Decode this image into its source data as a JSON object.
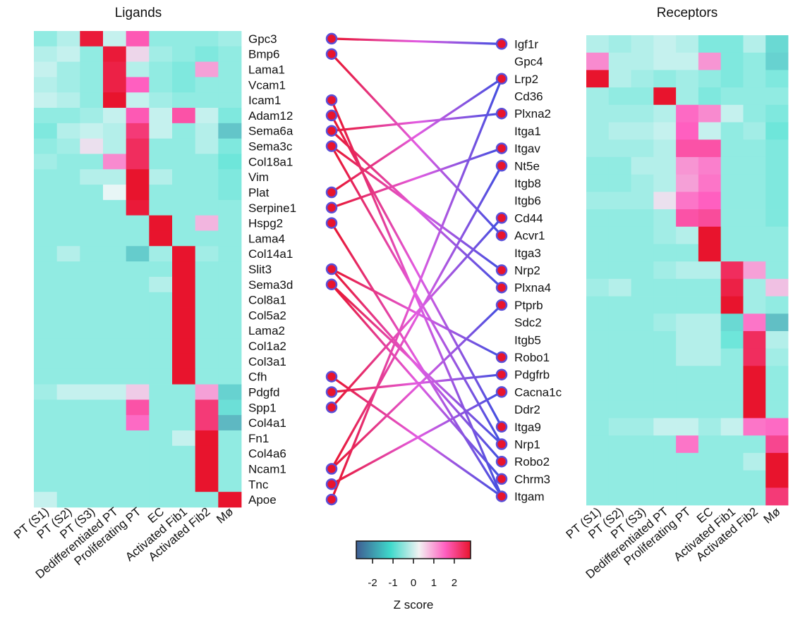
{
  "chart_data": {
    "type": "heatmap",
    "ligands_title": "Ligands",
    "receptors_title": "Receptors",
    "cell_types": [
      "PT (S1)",
      "PT (S2)",
      "PT (S3)",
      "Dedifferentiated PT",
      "Proliferating PT",
      "EC",
      "Activated Fib1",
      "Activated Fib2",
      "Mø"
    ],
    "ligands": [
      "Gpc3",
      "Bmp6",
      "Lama1",
      "Vcam1",
      "Icam1",
      "Adam12",
      "Sema6a",
      "Sema3c",
      "Col18a1",
      "Vim",
      "Plat",
      "Serpine1",
      "Hspg2",
      "Lama4",
      "Col14a1",
      "Slit3",
      "Sema3d",
      "Col8a1",
      "Col5a2",
      "Lama2",
      "Col1a2",
      "Col3a1",
      "Cfh",
      "Pdgfd",
      "Spp1",
      "Col4a1",
      "Fn1",
      "Col4a6",
      "Ncam1",
      "Tnc",
      "Apoe"
    ],
    "receptors": [
      "Igf1r",
      "Gpc4",
      "Lrp2",
      "Cd36",
      "Plxna2",
      "Itga1",
      "Itgav",
      "Nt5e",
      "Itgb8",
      "Itgb6",
      "Cd44",
      "Acvr1",
      "Itga3",
      "Nrp2",
      "Plxna4",
      "Ptprb",
      "Sdc2",
      "Itgb5",
      "Robo1",
      "Pdgfrb",
      "Cacna1c",
      "Ddr2",
      "Itga9",
      "Nrp1",
      "Robo2",
      "Chrm3",
      "Itgam"
    ],
    "ligand_z": [
      [
        -0.5,
        -0.3,
        2.5,
        -0.2,
        1.5,
        -0.5,
        -0.5,
        -0.5,
        -0.4
      ],
      [
        -0.3,
        -0.2,
        -0.5,
        2.5,
        0.3,
        -0.4,
        -0.5,
        -0.6,
        -0.5
      ],
      [
        -0.2,
        -0.4,
        -0.5,
        2.4,
        -0.3,
        -0.5,
        -0.6,
        0.8,
        -0.5
      ],
      [
        -0.3,
        -0.4,
        -0.5,
        2.4,
        1.4,
        -0.5,
        -0.6,
        -0.5,
        -0.5
      ],
      [
        -0.2,
        -0.3,
        -0.5,
        2.6,
        -0.2,
        -0.4,
        -0.5,
        -0.5,
        -0.5
      ],
      [
        -0.5,
        -0.5,
        -0.4,
        -0.2,
        1.5,
        -0.2,
        1.6,
        -0.2,
        -0.6
      ],
      [
        -0.6,
        -0.3,
        -0.2,
        -0.3,
        2.0,
        -0.2,
        -0.5,
        -0.3,
        -1.2
      ],
      [
        -0.5,
        -0.4,
        0.2,
        -0.3,
        2.2,
        -0.5,
        -0.5,
        -0.3,
        -0.6
      ],
      [
        -0.4,
        -0.5,
        -0.5,
        1.0,
        2.2,
        -0.5,
        -0.5,
        -0.5,
        -0.7
      ],
      [
        -0.5,
        -0.5,
        -0.3,
        -0.3,
        2.6,
        -0.3,
        -0.5,
        -0.5,
        -0.6
      ],
      [
        -0.5,
        -0.5,
        -0.5,
        0.0,
        2.6,
        -0.5,
        -0.5,
        -0.5,
        -0.6
      ],
      [
        -0.5,
        -0.5,
        -0.5,
        -0.5,
        2.5,
        -0.5,
        -0.5,
        -0.5,
        -0.5
      ],
      [
        -0.5,
        -0.5,
        -0.5,
        -0.5,
        -0.5,
        2.6,
        -0.5,
        0.6,
        -0.5
      ],
      [
        -0.5,
        -0.5,
        -0.5,
        -0.5,
        -0.5,
        2.6,
        -0.5,
        -0.5,
        -0.5
      ],
      [
        -0.5,
        -0.3,
        -0.5,
        -0.5,
        -1.1,
        -0.4,
        2.6,
        -0.4,
        -0.5
      ],
      [
        -0.5,
        -0.5,
        -0.5,
        -0.5,
        -0.5,
        -0.5,
        2.6,
        -0.5,
        -0.5
      ],
      [
        -0.5,
        -0.5,
        -0.5,
        -0.5,
        -0.5,
        -0.3,
        2.6,
        -0.5,
        -0.5
      ],
      [
        -0.5,
        -0.5,
        -0.5,
        -0.5,
        -0.5,
        -0.5,
        2.6,
        -0.5,
        -0.5
      ],
      [
        -0.5,
        -0.5,
        -0.5,
        -0.5,
        -0.5,
        -0.5,
        2.6,
        -0.5,
        -0.5
      ],
      [
        -0.5,
        -0.5,
        -0.5,
        -0.5,
        -0.5,
        -0.5,
        2.6,
        -0.5,
        -0.5
      ],
      [
        -0.5,
        -0.5,
        -0.5,
        -0.5,
        -0.5,
        -0.5,
        2.6,
        -0.5,
        -0.5
      ],
      [
        -0.5,
        -0.5,
        -0.5,
        -0.5,
        -0.5,
        -0.5,
        2.6,
        -0.5,
        -0.5
      ],
      [
        -0.5,
        -0.5,
        -0.5,
        -0.5,
        -0.5,
        -0.5,
        2.6,
        -0.5,
        -0.5
      ],
      [
        -0.4,
        -0.2,
        -0.2,
        -0.2,
        0.4,
        -0.5,
        -0.5,
        0.8,
        -1.0
      ],
      [
        -0.5,
        -0.5,
        -0.5,
        -0.5,
        1.6,
        -0.5,
        -0.5,
        2.0,
        -0.8
      ],
      [
        -0.5,
        -0.5,
        -0.5,
        -0.5,
        1.3,
        -0.5,
        -0.5,
        2.0,
        -1.4
      ],
      [
        -0.5,
        -0.5,
        -0.5,
        -0.5,
        -0.5,
        -0.5,
        -0.2,
        2.6,
        -0.5
      ],
      [
        -0.5,
        -0.5,
        -0.5,
        -0.5,
        -0.5,
        -0.5,
        -0.5,
        2.6,
        -0.5
      ],
      [
        -0.5,
        -0.5,
        -0.5,
        -0.5,
        -0.5,
        -0.5,
        -0.5,
        2.6,
        -0.5
      ],
      [
        -0.5,
        -0.5,
        -0.5,
        -0.5,
        -0.5,
        -0.5,
        -0.5,
        2.6,
        -0.5
      ],
      [
        -0.2,
        -0.5,
        -0.5,
        -0.5,
        -0.5,
        -0.5,
        -0.5,
        -0.5,
        2.6
      ]
    ],
    "receptor_z": [
      [
        -0.3,
        -0.4,
        -0.3,
        -0.2,
        -0.3,
        -0.6,
        -0.6,
        -0.3,
        -0.9
      ],
      [
        1.0,
        -0.3,
        -0.3,
        -0.2,
        -0.2,
        0.9,
        -0.6,
        -0.5,
        -1.0
      ],
      [
        2.6,
        -0.3,
        -0.4,
        -0.5,
        -0.4,
        -0.5,
        -0.6,
        -0.5,
        -0.6
      ],
      [
        -0.4,
        -0.5,
        -0.5,
        2.6,
        -0.4,
        -0.6,
        -0.5,
        -0.5,
        -0.5
      ],
      [
        -0.4,
        -0.4,
        -0.4,
        -0.3,
        1.3,
        1.0,
        -0.2,
        -0.5,
        -0.6
      ],
      [
        -0.4,
        -0.3,
        -0.3,
        -0.2,
        1.4,
        -0.2,
        -0.5,
        -0.4,
        -0.7
      ],
      [
        -0.4,
        -0.4,
        -0.4,
        -0.3,
        1.6,
        1.6,
        -0.5,
        -0.5,
        -0.6
      ],
      [
        -0.5,
        -0.5,
        -0.3,
        -0.3,
        0.9,
        1.1,
        -0.5,
        -0.5,
        -0.6
      ],
      [
        -0.5,
        -0.5,
        -0.4,
        -0.3,
        0.8,
        1.2,
        -0.5,
        -0.5,
        -0.6
      ],
      [
        -0.4,
        -0.4,
        -0.4,
        0.2,
        1.2,
        1.4,
        -0.5,
        -0.5,
        -0.6
      ],
      [
        -0.5,
        -0.5,
        -0.5,
        -0.4,
        1.6,
        1.7,
        -0.5,
        -0.5,
        -0.6
      ],
      [
        -0.5,
        -0.5,
        -0.5,
        -0.4,
        -0.3,
        2.6,
        -0.5,
        -0.5,
        -0.5
      ],
      [
        -0.5,
        -0.5,
        -0.5,
        -0.5,
        -0.5,
        2.6,
        -0.5,
        -0.5,
        -0.5
      ],
      [
        -0.5,
        -0.5,
        -0.5,
        -0.4,
        -0.3,
        -0.3,
        2.2,
        0.8,
        -0.5
      ],
      [
        -0.4,
        -0.3,
        -0.5,
        -0.5,
        -0.5,
        -0.5,
        2.4,
        -0.4,
        0.5
      ],
      [
        -0.5,
        -0.5,
        -0.5,
        -0.5,
        -0.5,
        -0.5,
        2.6,
        -0.4,
        -0.5
      ],
      [
        -0.5,
        -0.5,
        -0.5,
        -0.4,
        -0.3,
        -0.3,
        -0.9,
        1.2,
        -1.3
      ],
      [
        -0.5,
        -0.5,
        -0.5,
        -0.5,
        -0.3,
        -0.3,
        -0.7,
        2.2,
        -0.3
      ],
      [
        -0.5,
        -0.5,
        -0.5,
        -0.5,
        -0.3,
        -0.3,
        -0.5,
        2.2,
        -0.4
      ],
      [
        -0.5,
        -0.5,
        -0.5,
        -0.5,
        -0.5,
        -0.5,
        -0.5,
        2.6,
        -0.5
      ],
      [
        -0.5,
        -0.5,
        -0.5,
        -0.5,
        -0.5,
        -0.5,
        -0.5,
        2.6,
        -0.5
      ],
      [
        -0.5,
        -0.5,
        -0.5,
        -0.5,
        -0.5,
        -0.5,
        -0.5,
        2.6,
        -0.5
      ],
      [
        -0.5,
        -0.4,
        -0.4,
        -0.2,
        -0.2,
        -0.4,
        -0.2,
        1.2,
        1.3
      ],
      [
        -0.5,
        -0.5,
        -0.5,
        -0.5,
        1.2,
        -0.5,
        -0.5,
        -0.5,
        1.8
      ],
      [
        -0.5,
        -0.5,
        -0.5,
        -0.5,
        -0.5,
        -0.5,
        -0.5,
        -0.3,
        2.6
      ],
      [
        -0.5,
        -0.5,
        -0.5,
        -0.5,
        -0.5,
        -0.5,
        -0.5,
        -0.5,
        2.6
      ],
      [
        -0.5,
        -0.5,
        -0.5,
        -0.5,
        -0.5,
        -0.5,
        -0.5,
        -0.5,
        2.0
      ]
    ],
    "interactions": [
      [
        "Gpc3",
        "Igf1r"
      ],
      [
        "Bmp6",
        "Acvr1"
      ],
      [
        "Icam1",
        "Itgam"
      ],
      [
        "Adam12",
        "Itga9"
      ],
      [
        "Sema6a",
        "Plxna2"
      ],
      [
        "Sema6a",
        "Plxna4"
      ],
      [
        "Sema3c",
        "Nrp2"
      ],
      [
        "Sema3c",
        "Nrp1"
      ],
      [
        "Plat",
        "Lrp2"
      ],
      [
        "Serpine1",
        "Itgav"
      ],
      [
        "Hspg2",
        "Itgam"
      ],
      [
        "Slit3",
        "Robo1"
      ],
      [
        "Slit3",
        "Robo2"
      ],
      [
        "Sema3d",
        "Nrp1"
      ],
      [
        "Sema3d",
        "Chrm3"
      ],
      [
        "Cfh",
        "Itgam"
      ],
      [
        "Pdgfd",
        "Pdgfrb"
      ],
      [
        "Spp1",
        "Cd44"
      ],
      [
        "Ncam1",
        "Nt5e"
      ],
      [
        "Ncam1",
        "Ptprb"
      ],
      [
        "Tnc",
        "Cacna1c"
      ],
      [
        "Apoe",
        "Lrp2"
      ]
    ],
    "colorbar": {
      "label": "Z score",
      "ticks": [
        "-2",
        "-1",
        "0",
        "1",
        "2"
      ],
      "range": [
        -2.8,
        2.8
      ],
      "stops": [
        "#3f5d92",
        "#3fd9cb",
        "#ffffff",
        "#ff5fc0",
        "#e8142d"
      ]
    }
  }
}
